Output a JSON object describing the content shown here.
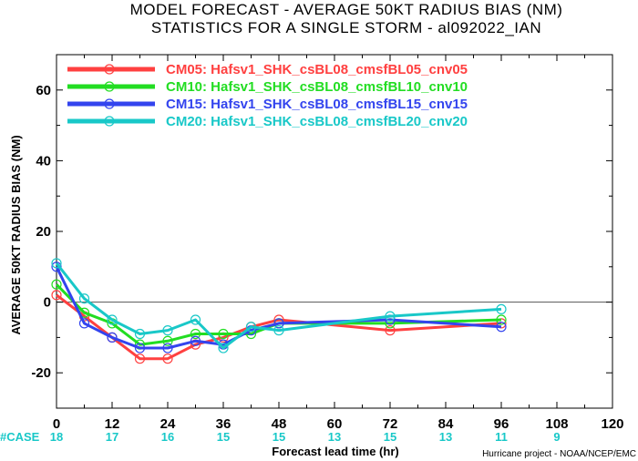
{
  "chart_data": {
    "type": "line",
    "title": "MODEL FORECAST - AVERAGE 50KT RADIUS BIAS (NM)",
    "subtitle": "STATISTICS FOR A SINGLE STORM - al092022_IAN",
    "xlabel": "Forecast lead time (hr)",
    "ylabel": "AVERAGE 50KT RADIUS BIAS (NM)",
    "xlim": [
      0,
      120
    ],
    "ylim": [
      -30,
      70
    ],
    "xticks": [
      0,
      12,
      24,
      36,
      48,
      60,
      72,
      84,
      96,
      108,
      120
    ],
    "yticks": [
      -20,
      0,
      20,
      40,
      60
    ],
    "zero_line": true,
    "legend_position": "top-left",
    "series": [
      {
        "name": "CM05: Hafsv1_SHK_csBL08_cmsfBL05_cnv05",
        "color": "#ff4040",
        "x": [
          0,
          6,
          12,
          18,
          24,
          30,
          36,
          42,
          48,
          72,
          96
        ],
        "y": [
          2,
          -4,
          -10,
          -16,
          -16,
          -12,
          -10,
          -7,
          -5,
          -8,
          -6
        ]
      },
      {
        "name": "CM10: Hafsv1_SHK_csBL08_cmsfBL10_cnv10",
        "color": "#22dd22",
        "x": [
          0,
          6,
          12,
          18,
          24,
          30,
          36,
          42,
          48,
          72,
          96
        ],
        "y": [
          5,
          -3,
          -6,
          -12,
          -11,
          -9,
          -9,
          -9,
          -6,
          -6,
          -5
        ]
      },
      {
        "name": "CM15: Hafsv1_SHK_csBL08_cmsfBL15_cnv15",
        "color": "#3344ee",
        "x": [
          0,
          6,
          12,
          18,
          24,
          30,
          36,
          42,
          48,
          72,
          96
        ],
        "y": [
          10,
          -6,
          -10,
          -13,
          -13,
          -11,
          -12,
          -8,
          -6,
          -5,
          -7
        ]
      },
      {
        "name": "CM20: Hafsv1_SHK_csBL08_cmsfBL20_cnv20",
        "color": "#19c8c8",
        "x": [
          0,
          6,
          12,
          18,
          24,
          30,
          36,
          42,
          48,
          72,
          96
        ],
        "y": [
          11,
          1,
          -5,
          -9,
          -8,
          -5,
          -13,
          -7,
          -8,
          -4,
          -2
        ]
      }
    ],
    "cases_label": "#CASE",
    "cases": [
      {
        "x": 0,
        "n": "18"
      },
      {
        "x": 12,
        "n": "17"
      },
      {
        "x": 24,
        "n": "16"
      },
      {
        "x": 36,
        "n": "15"
      },
      {
        "x": 48,
        "n": "15"
      },
      {
        "x": 60,
        "n": "13"
      },
      {
        "x": 72,
        "n": "15"
      },
      {
        "x": 84,
        "n": "13"
      },
      {
        "x": 96,
        "n": "11"
      },
      {
        "x": 108,
        "n": "9"
      }
    ],
    "credit": "Hurricane project - NOAA/NCEP/EMC"
  }
}
